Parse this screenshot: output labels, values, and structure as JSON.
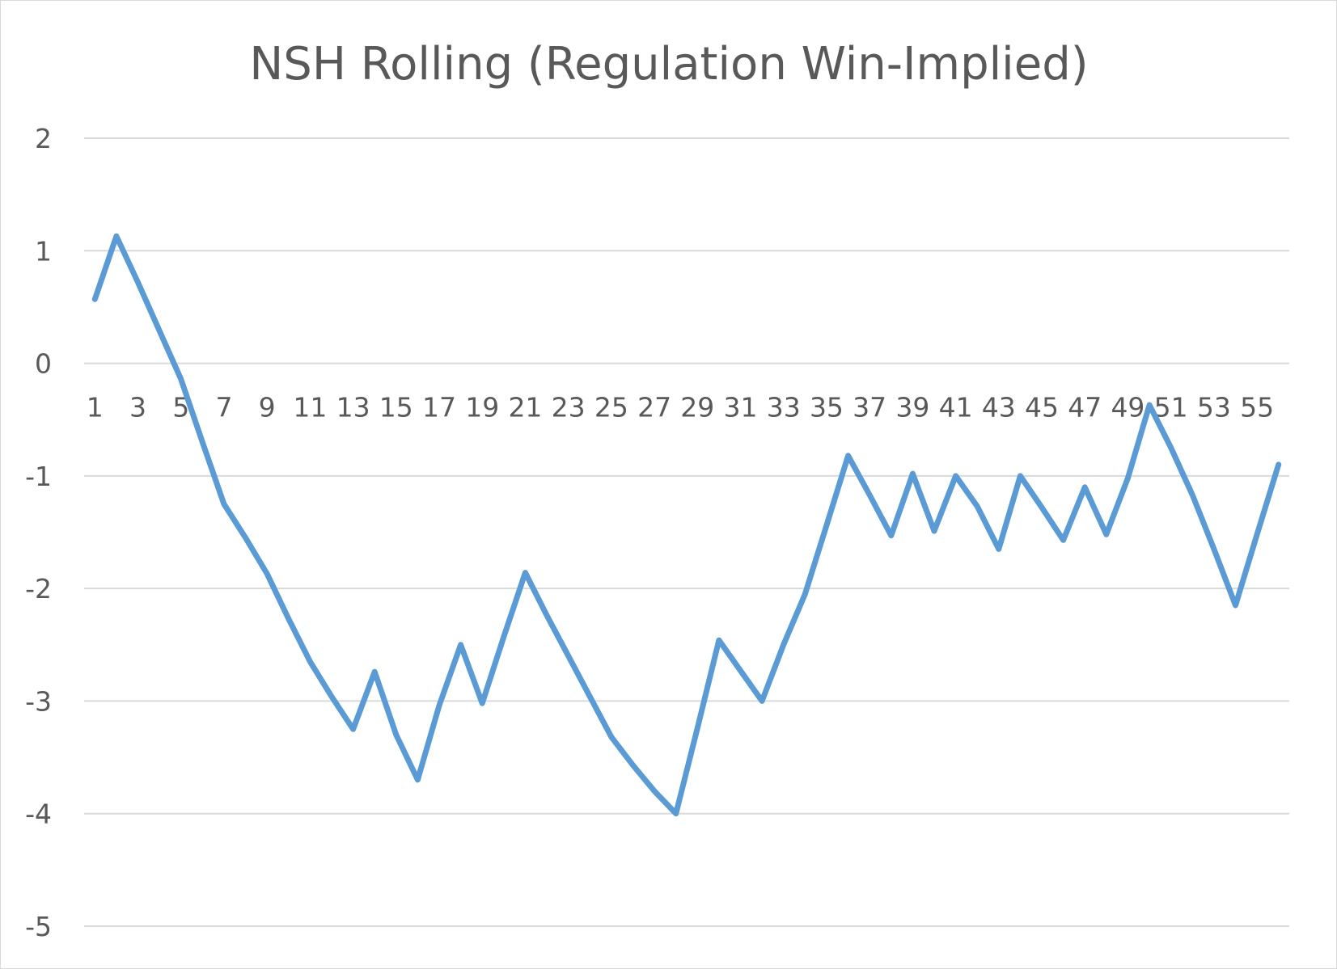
{
  "chart_data": {
    "type": "line",
    "title": "NSH Rolling (Regulation Win-Implied)",
    "xlabel": "",
    "ylabel": "",
    "ylim": [
      -5,
      2
    ],
    "y_ticks": [
      2,
      1,
      0,
      -1,
      -2,
      -3,
      -4,
      -5
    ],
    "x": [
      1,
      2,
      3,
      4,
      5,
      6,
      7,
      8,
      9,
      10,
      11,
      12,
      13,
      14,
      15,
      16,
      17,
      18,
      19,
      20,
      21,
      22,
      23,
      24,
      25,
      26,
      27,
      28,
      29,
      30,
      31,
      32,
      33,
      34,
      35,
      36,
      37,
      38,
      39,
      40,
      41,
      42,
      43,
      44,
      45,
      46,
      47,
      48,
      49,
      50,
      51,
      52,
      53,
      54,
      55,
      56
    ],
    "x_tick_labels": [
      "1",
      "3",
      "5",
      "7",
      "9",
      "11",
      "13",
      "15",
      "17",
      "19",
      "21",
      "23",
      "25",
      "27",
      "29",
      "31",
      "33",
      "35",
      "37",
      "39",
      "41",
      "43",
      "45",
      "47",
      "49",
      "51",
      "53",
      "55"
    ],
    "grid": true,
    "legend": "none",
    "series": [
      {
        "color": "#5b9bd5",
        "values": [
          0.57,
          1.13,
          0.72,
          0.29,
          -0.14,
          -0.7,
          -1.25,
          -1.55,
          -1.87,
          -2.27,
          -2.65,
          -2.96,
          -3.25,
          -2.74,
          -3.3,
          -3.7,
          -3.04,
          -2.5,
          -3.02,
          -2.43,
          -1.86,
          -2.24,
          -2.6,
          -2.96,
          -3.32,
          -3.57,
          -3.8,
          -4.0,
          -3.24,
          -2.46,
          -2.73,
          -3.0,
          -2.5,
          -2.05,
          -1.44,
          -0.82,
          -1.17,
          -1.53,
          -0.98,
          -1.49,
          -1.0,
          -1.27,
          -1.65,
          -1.0,
          -1.28,
          -1.57,
          -1.1,
          -1.52,
          -1.02,
          -0.37,
          -0.75,
          -1.17,
          -1.65,
          -2.15,
          -1.52,
          -0.9
        ]
      }
    ]
  }
}
